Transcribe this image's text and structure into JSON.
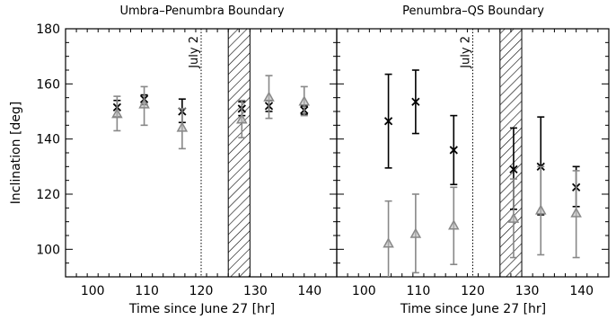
{
  "chart_data": [
    {
      "type": "scatter",
      "title": "Umbra–Penumbra Boundary",
      "xlabel": "Time since June 27 [hr]",
      "ylabel": "Inclination [deg]",
      "xlim": [
        95,
        145
      ],
      "ylim": [
        90,
        180
      ],
      "xticks": [
        100,
        110,
        120,
        130,
        140
      ],
      "yticks": [
        100,
        120,
        140,
        160,
        180
      ],
      "vline": {
        "x": 120,
        "label": "July 2"
      },
      "shaded_band": [
        125,
        129
      ],
      "series": [
        {
          "marker": "x",
          "color": "#000000",
          "points": [
            {
              "x": 104.5,
              "y": 151.5,
              "lo": 148.0,
              "hi": 154.0
            },
            {
              "x": 109.5,
              "y": 154.5,
              "lo": 152.5,
              "hi": 156.0
            },
            {
              "x": 116.5,
              "y": 150.0,
              "lo": 146.0,
              "hi": 154.5
            },
            {
              "x": 127.5,
              "y": 151.0,
              "lo": 148.5,
              "hi": 153.5
            },
            {
              "x": 132.5,
              "y": 152.0,
              "lo": 150.0,
              "hi": 154.0
            },
            {
              "x": 139.0,
              "y": 150.5,
              "lo": 149.0,
              "hi": 152.0
            }
          ]
        },
        {
          "marker": "triangle",
          "color": "#888888",
          "points": [
            {
              "x": 104.5,
              "y": 149.0,
              "lo": 143.0,
              "hi": 155.5
            },
            {
              "x": 109.5,
              "y": 152.5,
              "lo": 145.0,
              "hi": 159.0
            },
            {
              "x": 116.5,
              "y": 144.0,
              "lo": 136.5,
              "hi": 151.0
            },
            {
              "x": 127.5,
              "y": 147.0,
              "lo": 140.5,
              "hi": 154.0
            },
            {
              "x": 132.5,
              "y": 155.0,
              "lo": 147.5,
              "hi": 163.0
            },
            {
              "x": 139.0,
              "y": 153.5,
              "lo": 148.5,
              "hi": 159.0
            }
          ]
        }
      ]
    },
    {
      "type": "scatter",
      "title": "Penumbra–QS Boundary",
      "xlabel": "Time since June 27 [hr]",
      "ylabel": "",
      "xlim": [
        95,
        145
      ],
      "ylim": [
        90,
        180
      ],
      "xticks": [
        100,
        110,
        120,
        130,
        140
      ],
      "yticks": [
        100,
        120,
        140,
        160,
        180
      ],
      "vline": {
        "x": 120,
        "label": "July 2"
      },
      "shaded_band": [
        125,
        129
      ],
      "series": [
        {
          "marker": "x",
          "color": "#000000",
          "points": [
            {
              "x": 104.5,
              "y": 146.5,
              "lo": 129.5,
              "hi": 163.5
            },
            {
              "x": 109.5,
              "y": 153.5,
              "lo": 142.0,
              "hi": 165.0
            },
            {
              "x": 116.5,
              "y": 136.0,
              "lo": 123.5,
              "hi": 148.5
            },
            {
              "x": 127.5,
              "y": 129.0,
              "lo": 114.5,
              "hi": 144.0
            },
            {
              "x": 132.5,
              "y": 130.0,
              "lo": 112.5,
              "hi": 148.0
            },
            {
              "x": 139.0,
              "y": 122.5,
              "lo": 115.5,
              "hi": 130.0
            }
          ]
        },
        {
          "marker": "triangle",
          "color": "#888888",
          "points": [
            {
              "x": 104.5,
              "y": 102.0,
              "lo": 86.5,
              "hi": 117.5
            },
            {
              "x": 109.5,
              "y": 105.5,
              "lo": 91.5,
              "hi": 120.0
            },
            {
              "x": 116.5,
              "y": 108.5,
              "lo": 94.5,
              "hi": 122.5
            },
            {
              "x": 127.5,
              "y": 111.0,
              "lo": 97.0,
              "hi": 125.5
            },
            {
              "x": 132.5,
              "y": 114.0,
              "lo": 98.0,
              "hi": 130.0
            },
            {
              "x": 139.0,
              "y": 113.0,
              "lo": 97.0,
              "hi": 128.5
            }
          ]
        }
      ]
    }
  ]
}
